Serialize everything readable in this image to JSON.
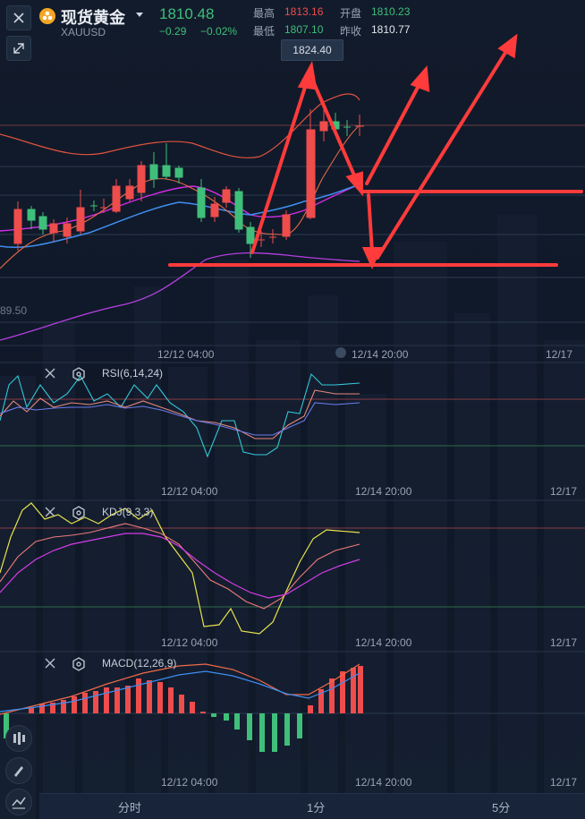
{
  "header": {
    "title": "现货黄金",
    "symbol": "XAUUSD",
    "price": "1810.48",
    "change": "−0.29",
    "change_pct": "−0.02%",
    "high_label": "最高",
    "high": "1813.16",
    "low_label": "最低",
    "low": "1807.10",
    "open_label": "开盘",
    "open": "1810.23",
    "prev_close_label": "昨收",
    "prev_close": "1810.77"
  },
  "chart": {
    "peak_callout": "1824.40",
    "price_partial_label": "89.50",
    "time_labels": [
      "12/12 04:00",
      "12/14 20:00",
      "12/17"
    ]
  },
  "indicators": {
    "rsi": "RSI(6,14,24)",
    "kdj": "KDJ(9,3,3)",
    "macd": "MACD(12,26,9)"
  },
  "bottom_tabs": [
    "分时",
    "1分",
    "5分"
  ],
  "colors": {
    "up": "#ef4c4c",
    "down": "#3fbf7a",
    "arrow": "#ff3b3b",
    "ma_blue": "#3f8ef0",
    "ma_purple": "#b43fe0"
  },
  "icons": {
    "close": "close-icon",
    "expand": "expand-icon",
    "settings": "gear-icon",
    "candles": "candle-icon",
    "pen": "pen-icon",
    "indicator": "indicator-icon"
  }
}
